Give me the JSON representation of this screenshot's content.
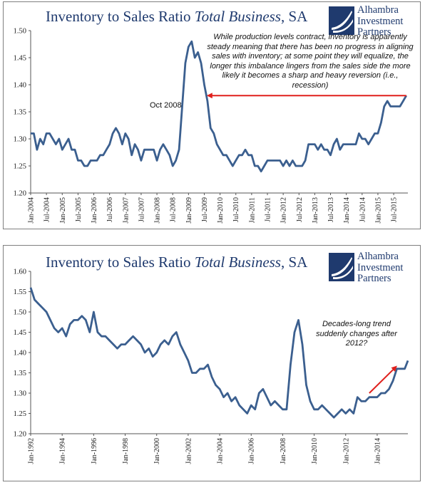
{
  "charts": [
    {
      "title_main": "Inventory to Sales Ratio ",
      "title_italic": "Total Business",
      "title_tail": ", SA",
      "logo": [
        "Alhambra",
        "Investment",
        "Partners"
      ],
      "annotation": "While production levels contract, inventory is apparently steady meaning that there has been no progress in aligning sales with inventory; at some point they will equalize, the longer this imbalance lingers from the sales side the more likely it becomes a sharp and heavy reversion (i.e., recession)",
      "event_label": "Oct 2008"
    },
    {
      "title_main": "Inventory to Sales Ratio ",
      "title_italic": "Total Business",
      "title_tail": ", SA",
      "logo": [
        "Alhambra",
        "Investment",
        "Partners"
      ],
      "annotation": "Decades-long trend suddenly changes after 2012?"
    }
  ],
  "colors": {
    "line": "#3b5f8f",
    "arrow": "#e0201c",
    "title": "#1f3a6e",
    "axis": "#555555"
  },
  "chart_data": [
    {
      "type": "line",
      "title": "Inventory to Sales Ratio Total Business, SA",
      "ylim": [
        1.2,
        1.5
      ],
      "yticks": [
        "1.20",
        "1.25",
        "1.30",
        "1.35",
        "1.40",
        "1.45",
        "1.50"
      ],
      "xlim": [
        2004.0,
        2015.95
      ],
      "xticks": [
        {
          "x": 2004.0,
          "label": "Jan-2004"
        },
        {
          "x": 2004.5,
          "label": "Jul-2004"
        },
        {
          "x": 2005.0,
          "label": "Jan-2005"
        },
        {
          "x": 2005.5,
          "label": "Jul-2005"
        },
        {
          "x": 2006.0,
          "label": "Jan-2006"
        },
        {
          "x": 2006.5,
          "label": "Jul-2006"
        },
        {
          "x": 2007.0,
          "label": "Jan-2007"
        },
        {
          "x": 2007.5,
          "label": "Jul-2007"
        },
        {
          "x": 2008.0,
          "label": "Jan-2008"
        },
        {
          "x": 2008.5,
          "label": "Jul-2008"
        },
        {
          "x": 2009.0,
          "label": "Jan-2009"
        },
        {
          "x": 2009.5,
          "label": "Jul-2009"
        },
        {
          "x": 2010.0,
          "label": "Jan-2010"
        },
        {
          "x": 2010.5,
          "label": "Jul-2010"
        },
        {
          "x": 2011.0,
          "label": "Jan-2011"
        },
        {
          "x": 2011.5,
          "label": "Jul-2011"
        },
        {
          "x": 2012.0,
          "label": "Jan-2012"
        },
        {
          "x": 2012.5,
          "label": "Jul-2012"
        },
        {
          "x": 2013.0,
          "label": "Jan-2013"
        },
        {
          "x": 2013.5,
          "label": "Jul-2013"
        },
        {
          "x": 2014.0,
          "label": "Jan-2014"
        },
        {
          "x": 2014.5,
          "label": "Jul-2014"
        },
        {
          "x": 2015.0,
          "label": "Jan-2015"
        },
        {
          "x": 2015.5,
          "label": "Jul-2015"
        }
      ],
      "arrow": {
        "from": [
          2015.9,
          1.38
        ],
        "to": [
          2009.62,
          1.38
        ]
      },
      "series": [
        {
          "x": [
            2004.0,
            2004.1,
            2004.2,
            2004.3,
            2004.4,
            2004.5,
            2004.6,
            2004.7,
            2004.8,
            2004.9,
            2005.0,
            2005.1,
            2005.2,
            2005.3,
            2005.4,
            2005.5,
            2005.6,
            2005.7,
            2005.8,
            2005.9,
            2006.0,
            2006.1,
            2006.2,
            2006.3,
            2006.4,
            2006.5,
            2006.6,
            2006.7,
            2006.8,
            2006.9,
            2007.0,
            2007.1,
            2007.2,
            2007.3,
            2007.4,
            2007.5,
            2007.6,
            2007.7,
            2007.8,
            2007.9,
            2008.0,
            2008.1,
            2008.2,
            2008.3,
            2008.4,
            2008.5,
            2008.6,
            2008.7,
            2008.8,
            2008.9,
            2009.0,
            2009.1,
            2009.2,
            2009.3,
            2009.4,
            2009.5,
            2009.6,
            2009.7,
            2009.8,
            2009.9,
            2010.0,
            2010.1,
            2010.2,
            2010.3,
            2010.4,
            2010.5,
            2010.6,
            2010.7,
            2010.8,
            2010.9,
            2011.0,
            2011.1,
            2011.2,
            2011.3,
            2011.4,
            2011.5,
            2011.6,
            2011.7,
            2011.8,
            2011.9,
            2012.0,
            2012.1,
            2012.2,
            2012.3,
            2012.4,
            2012.5,
            2012.6,
            2012.7,
            2012.8,
            2012.9,
            2013.0,
            2013.1,
            2013.2,
            2013.3,
            2013.4,
            2013.5,
            2013.6,
            2013.7,
            2013.8,
            2013.9,
            2014.0,
            2014.1,
            2014.2,
            2014.3,
            2014.4,
            2014.5,
            2014.6,
            2014.7,
            2014.8,
            2014.9,
            2015.0,
            2015.1,
            2015.2,
            2015.3,
            2015.4,
            2015.5,
            2015.6,
            2015.7,
            2015.8,
            2015.9
          ],
          "y": [
            1.31,
            1.31,
            1.28,
            1.3,
            1.29,
            1.31,
            1.31,
            1.3,
            1.29,
            1.3,
            1.28,
            1.29,
            1.3,
            1.28,
            1.28,
            1.26,
            1.26,
            1.25,
            1.25,
            1.26,
            1.26,
            1.26,
            1.27,
            1.27,
            1.28,
            1.29,
            1.31,
            1.32,
            1.31,
            1.29,
            1.31,
            1.3,
            1.27,
            1.29,
            1.28,
            1.26,
            1.28,
            1.28,
            1.28,
            1.28,
            1.26,
            1.28,
            1.29,
            1.28,
            1.27,
            1.25,
            1.26,
            1.28,
            1.36,
            1.44,
            1.47,
            1.48,
            1.45,
            1.46,
            1.44,
            1.4,
            1.37,
            1.32,
            1.31,
            1.29,
            1.28,
            1.27,
            1.27,
            1.26,
            1.25,
            1.26,
            1.27,
            1.27,
            1.28,
            1.27,
            1.27,
            1.25,
            1.25,
            1.24,
            1.25,
            1.26,
            1.26,
            1.26,
            1.26,
            1.26,
            1.25,
            1.26,
            1.25,
            1.26,
            1.25,
            1.25,
            1.25,
            1.26,
            1.29,
            1.29,
            1.29,
            1.28,
            1.29,
            1.28,
            1.28,
            1.27,
            1.29,
            1.3,
            1.28,
            1.29,
            1.29,
            1.29,
            1.29,
            1.29,
            1.31,
            1.3,
            1.3,
            1.29,
            1.3,
            1.31,
            1.31,
            1.33,
            1.36,
            1.37,
            1.36,
            1.36,
            1.36,
            1.36,
            1.37,
            1.38
          ]
        }
      ]
    },
    {
      "type": "line",
      "title": "Inventory to Sales Ratio Total Business, SA",
      "ylim": [
        1.2,
        1.6
      ],
      "yticks": [
        "1.20",
        "1.25",
        "1.30",
        "1.35",
        "1.40",
        "1.45",
        "1.50",
        "1.55",
        "1.60"
      ],
      "xlim": [
        1992.0,
        2015.95
      ],
      "xticks": [
        {
          "x": 1992,
          "label": "Jan-1992"
        },
        {
          "x": 1994,
          "label": "Jan-1994"
        },
        {
          "x": 1996,
          "label": "Jan-1996"
        },
        {
          "x": 1998,
          "label": "Jan-1998"
        },
        {
          "x": 2000,
          "label": "Jan-2000"
        },
        {
          "x": 2002,
          "label": "Jan-2002"
        },
        {
          "x": 2004,
          "label": "Jan-2004"
        },
        {
          "x": 2006,
          "label": "Jan-2006"
        },
        {
          "x": 2008,
          "label": "Jan-2008"
        },
        {
          "x": 2010,
          "label": "Jan-2010"
        },
        {
          "x": 2012,
          "label": "Jan-2012"
        },
        {
          "x": 2014,
          "label": "Jan-2014"
        }
      ],
      "arrow": {
        "from": [
          2013.5,
          1.3
        ],
        "to": [
          2015.2,
          1.365
        ]
      },
      "series": [
        {
          "x": [
            1992.0,
            1992.25,
            1992.5,
            1992.75,
            1993.0,
            1993.25,
            1993.5,
            1993.75,
            1994.0,
            1994.25,
            1994.5,
            1994.75,
            1995.0,
            1995.25,
            1995.5,
            1995.75,
            1996.0,
            1996.25,
            1996.5,
            1996.75,
            1997.0,
            1997.25,
            1997.5,
            1997.75,
            1998.0,
            1998.25,
            1998.5,
            1998.75,
            1999.0,
            1999.25,
            1999.5,
            1999.75,
            2000.0,
            2000.25,
            2000.5,
            2000.75,
            2001.0,
            2001.25,
            2001.5,
            2001.75,
            2002.0,
            2002.25,
            2002.5,
            2002.75,
            2003.0,
            2003.25,
            2003.5,
            2003.75,
            2004.0,
            2004.25,
            2004.5,
            2004.75,
            2005.0,
            2005.25,
            2005.5,
            2005.75,
            2006.0,
            2006.25,
            2006.5,
            2006.75,
            2007.0,
            2007.25,
            2007.5,
            2007.75,
            2008.0,
            2008.25,
            2008.5,
            2008.75,
            2009.0,
            2009.25,
            2009.5,
            2009.75,
            2010.0,
            2010.25,
            2010.5,
            2010.75,
            2011.0,
            2011.25,
            2011.5,
            2011.75,
            2012.0,
            2012.25,
            2012.5,
            2012.75,
            2013.0,
            2013.25,
            2013.5,
            2013.75,
            2014.0,
            2014.25,
            2014.5,
            2014.75,
            2015.0,
            2015.25,
            2015.5,
            2015.75,
            2015.95
          ],
          "y": [
            1.56,
            1.53,
            1.52,
            1.51,
            1.5,
            1.48,
            1.46,
            1.45,
            1.46,
            1.44,
            1.47,
            1.48,
            1.48,
            1.49,
            1.48,
            1.45,
            1.5,
            1.45,
            1.44,
            1.44,
            1.43,
            1.42,
            1.41,
            1.42,
            1.42,
            1.43,
            1.44,
            1.43,
            1.42,
            1.4,
            1.41,
            1.39,
            1.4,
            1.42,
            1.43,
            1.42,
            1.44,
            1.45,
            1.42,
            1.4,
            1.38,
            1.35,
            1.35,
            1.36,
            1.36,
            1.37,
            1.34,
            1.32,
            1.31,
            1.29,
            1.3,
            1.28,
            1.29,
            1.27,
            1.26,
            1.25,
            1.27,
            1.26,
            1.3,
            1.31,
            1.29,
            1.27,
            1.28,
            1.27,
            1.26,
            1.26,
            1.37,
            1.45,
            1.48,
            1.42,
            1.32,
            1.28,
            1.26,
            1.26,
            1.27,
            1.26,
            1.25,
            1.24,
            1.25,
            1.26,
            1.25,
            1.26,
            1.25,
            1.29,
            1.28,
            1.28,
            1.29,
            1.29,
            1.29,
            1.3,
            1.3,
            1.31,
            1.33,
            1.36,
            1.36,
            1.36,
            1.38
          ]
        }
      ]
    }
  ]
}
